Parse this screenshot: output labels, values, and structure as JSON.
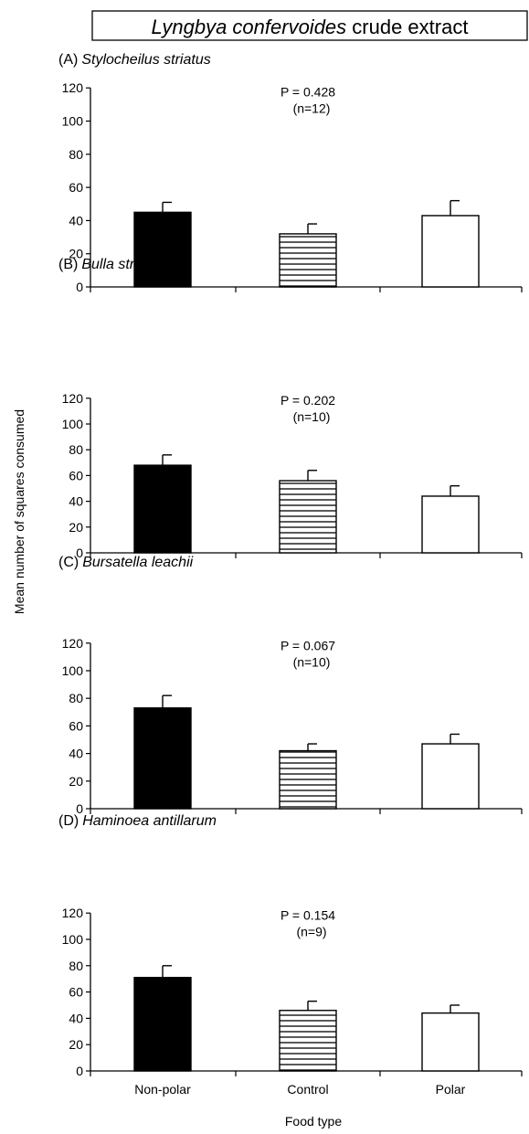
{
  "figure": {
    "title_italic": "Lyngbya confervoides",
    "title_rest": " crude extract",
    "ylabel": "Mean number of squares consumed",
    "xlabel": "Food type"
  },
  "chart_data": [
    {
      "type": "bar",
      "panel_label": "(A)",
      "species": "Stylocheilus striatus",
      "annotation": "P = 0.428",
      "n_text": "(n=12)",
      "categories": [
        "Non-polar",
        "Control",
        "Polar"
      ],
      "values": [
        45,
        32,
        43
      ],
      "errors": [
        6,
        6,
        9
      ],
      "fills": [
        "solid",
        "hatched",
        "open"
      ],
      "ylim": [
        0,
        120
      ],
      "yticks": [
        0,
        20,
        40,
        60,
        80,
        100,
        120
      ]
    },
    {
      "type": "bar",
      "panel_label": "(B)",
      "species": "Bulla striata",
      "annotation": "P = 0.202",
      "n_text": "(n=10)",
      "categories": [
        "Non-polar",
        "Control",
        "Polar"
      ],
      "values": [
        68,
        56,
        44
      ],
      "errors": [
        8,
        8,
        8
      ],
      "fills": [
        "solid",
        "hatched",
        "open"
      ],
      "ylim": [
        0,
        120
      ],
      "yticks": [
        0,
        20,
        40,
        60,
        80,
        100,
        120
      ]
    },
    {
      "type": "bar",
      "panel_label": "(C)",
      "species": "Bursatella leachii",
      "annotation": "P = 0.067",
      "n_text": "(n=10)",
      "categories": [
        "Non-polar",
        "Control",
        "Polar"
      ],
      "values": [
        73,
        42,
        47
      ],
      "errors": [
        9,
        5,
        7
      ],
      "fills": [
        "solid",
        "hatched",
        "open"
      ],
      "ylim": [
        0,
        120
      ],
      "yticks": [
        0,
        20,
        40,
        60,
        80,
        100,
        120
      ]
    },
    {
      "type": "bar",
      "panel_label": "(D)",
      "species": "Haminoea antillarum",
      "annotation": "P = 0.154",
      "n_text": "(n=9)",
      "categories": [
        "Non-polar",
        "Control",
        "Polar"
      ],
      "values": [
        71,
        46,
        44
      ],
      "errors": [
        9,
        7,
        6
      ],
      "fills": [
        "solid",
        "hatched",
        "open"
      ],
      "ylim": [
        0,
        120
      ],
      "yticks": [
        0,
        20,
        40,
        60,
        80,
        100,
        120
      ]
    }
  ]
}
